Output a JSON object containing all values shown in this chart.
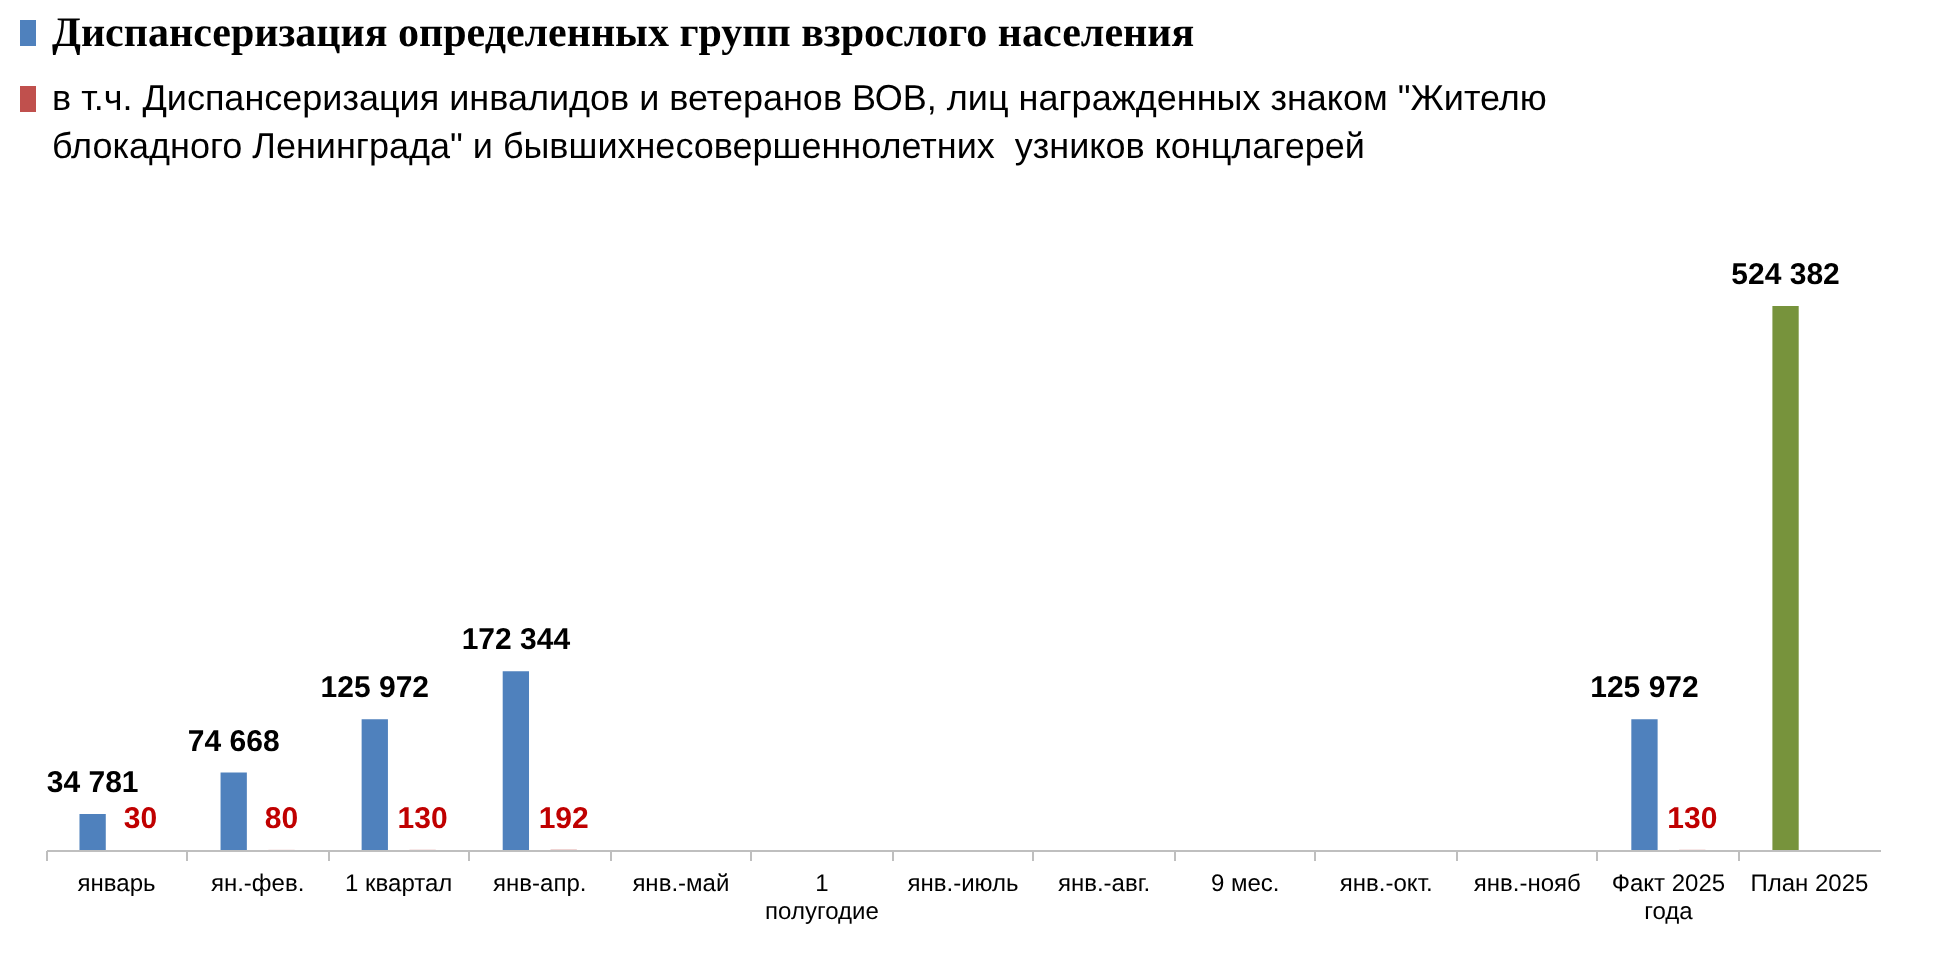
{
  "chart_data": {
    "type": "bar",
    "categories": [
      "январь",
      "ян.-фев.",
      "1 квартал",
      "янв-апр.",
      "янв.-май",
      "1 полугодие",
      "янв.-июль",
      "янв.-авг.",
      "9 мес.",
      "янв.-окт.",
      "янв.-нояб",
      "Факт 2025 года",
      "План 2025"
    ],
    "series": [
      {
        "name": "Диспансеризация определенных групп взрослого населения",
        "color": "#4f81bd",
        "colors": [
          "#4f81bd",
          "#4f81bd",
          "#4f81bd",
          "#4f81bd",
          null,
          null,
          null,
          null,
          null,
          null,
          null,
          "#4f81bd",
          "#77933c"
        ],
        "values": [
          34781,
          74668,
          125972,
          172344,
          null,
          null,
          null,
          null,
          null,
          null,
          null,
          125972,
          524382
        ]
      },
      {
        "name": "в т.ч. Диспансеризация инвалидов и ветеранов ВОВ, лиц награжденных знаком \"Жителю блокадного Ленинграда\" и бывшихнесовершеннолетних  узников концлагерей",
        "color": "#c0504d",
        "values": [
          30,
          80,
          130,
          192,
          null,
          null,
          null,
          null,
          null,
          null,
          null,
          130,
          null
        ]
      }
    ],
    "data_labels": true,
    "legend": "top left",
    "grid": false
  }
}
